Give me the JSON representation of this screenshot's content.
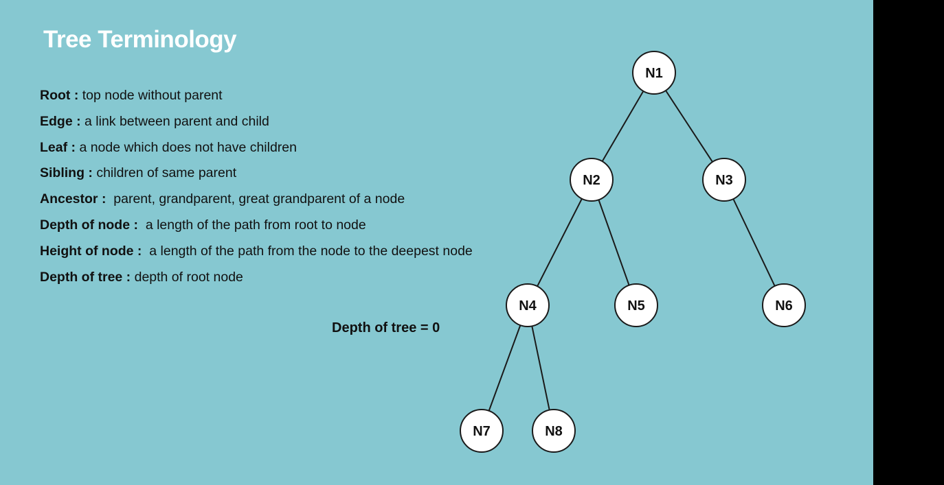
{
  "slide": {
    "title": "Tree Terminology",
    "background_color": "#86c8d1",
    "title_color": "#ffffff"
  },
  "terms": [
    {
      "term": "Root :",
      "definition": "top node without parent"
    },
    {
      "term": "Edge :",
      "definition": "a link between parent and child"
    },
    {
      "term": "Leaf :",
      "definition": "a node which does not have children"
    },
    {
      "term": "Sibling :",
      "definition": "children of same parent"
    },
    {
      "term": "Ancestor :",
      "definition": "parent, grandparent, great grandparent of a node"
    },
    {
      "term": "Depth of node :",
      "definition": "a length of the path from root to node"
    },
    {
      "term": "Height of node :",
      "definition": "a length of the path from the node to the deepest node"
    },
    {
      "term": "Depth of tree :",
      "definition": "depth of root node"
    }
  ],
  "depth_note": "Depth of tree = 0",
  "tree": {
    "nodes": [
      {
        "id": "N1",
        "label": "N1"
      },
      {
        "id": "N2",
        "label": "N2"
      },
      {
        "id": "N3",
        "label": "N3"
      },
      {
        "id": "N4",
        "label": "N4"
      },
      {
        "id": "N5",
        "label": "N5"
      },
      {
        "id": "N6",
        "label": "N6"
      },
      {
        "id": "N7",
        "label": "N7"
      },
      {
        "id": "N8",
        "label": "N8"
      }
    ],
    "edges": [
      {
        "from": "N1",
        "to": "N2"
      },
      {
        "from": "N1",
        "to": "N3"
      },
      {
        "from": "N2",
        "to": "N4"
      },
      {
        "from": "N2",
        "to": "N5"
      },
      {
        "from": "N3",
        "to": "N6"
      },
      {
        "from": "N4",
        "to": "N7"
      },
      {
        "from": "N4",
        "to": "N8"
      }
    ]
  }
}
